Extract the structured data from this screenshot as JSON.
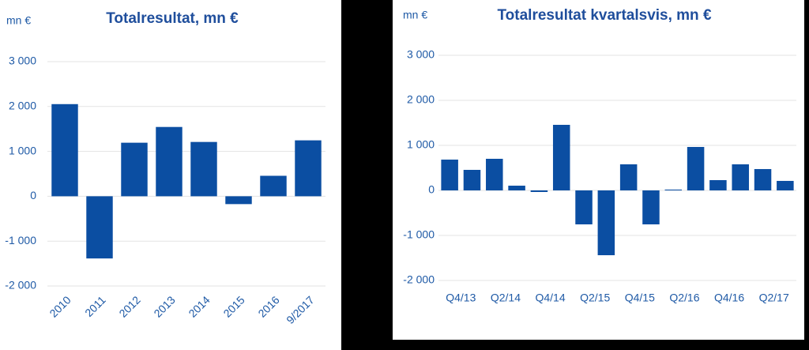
{
  "chart_data": [
    {
      "type": "bar",
      "title": "Totalresultat, mn €",
      "ylabel": "mn €",
      "categories": [
        "2010",
        "2011",
        "2012",
        "2013",
        "2014",
        "2015",
        "2016",
        "9/2017"
      ],
      "values": [
        2053,
        -1386,
        1193,
        1544,
        1210,
        -175,
        456,
        1246
      ],
      "color": "#0b4ea2",
      "rotate_labels": true,
      "ylim": [
        -2000,
        3000
      ],
      "yticks": [
        {
          "value": -2000,
          "label": "-2 000"
        },
        {
          "value": -1000,
          "label": "-1 000"
        },
        0,
        {
          "value": 1000,
          "label": "1 000"
        },
        {
          "value": 2000,
          "label": "2 000"
        },
        {
          "value": 3000,
          "label": "3 000"
        }
      ],
      "grid": true
    },
    {
      "type": "bar",
      "title": "Totalresultat kvartalsvis, mn €",
      "ylabel": "mn €",
      "categories": [
        "Q4/13",
        null,
        "Q2/14",
        null,
        "Q4/14",
        null,
        "Q2/15",
        null,
        "Q4/15",
        null,
        "Q2/16",
        null,
        "Q4/16",
        null,
        "Q2/17",
        null
      ],
      "values": [
        684,
        456,
        702,
        105,
        -35,
        1456,
        -754,
        -1439,
        579,
        -754,
        18,
        965,
        228,
        579,
        474,
        211
      ],
      "color": "#0b4ea2",
      "rotate_labels": false,
      "ylim": [
        -2000,
        3000
      ],
      "yticks": [
        {
          "value": -2000,
          "label": "-2 000"
        },
        {
          "value": -1000,
          "label": "-1 000"
        },
        0,
        {
          "value": 1000,
          "label": "1 000"
        },
        {
          "value": 2000,
          "label": "2 000"
        },
        {
          "value": 3000,
          "label": "3 000"
        }
      ],
      "grid": true
    }
  ]
}
